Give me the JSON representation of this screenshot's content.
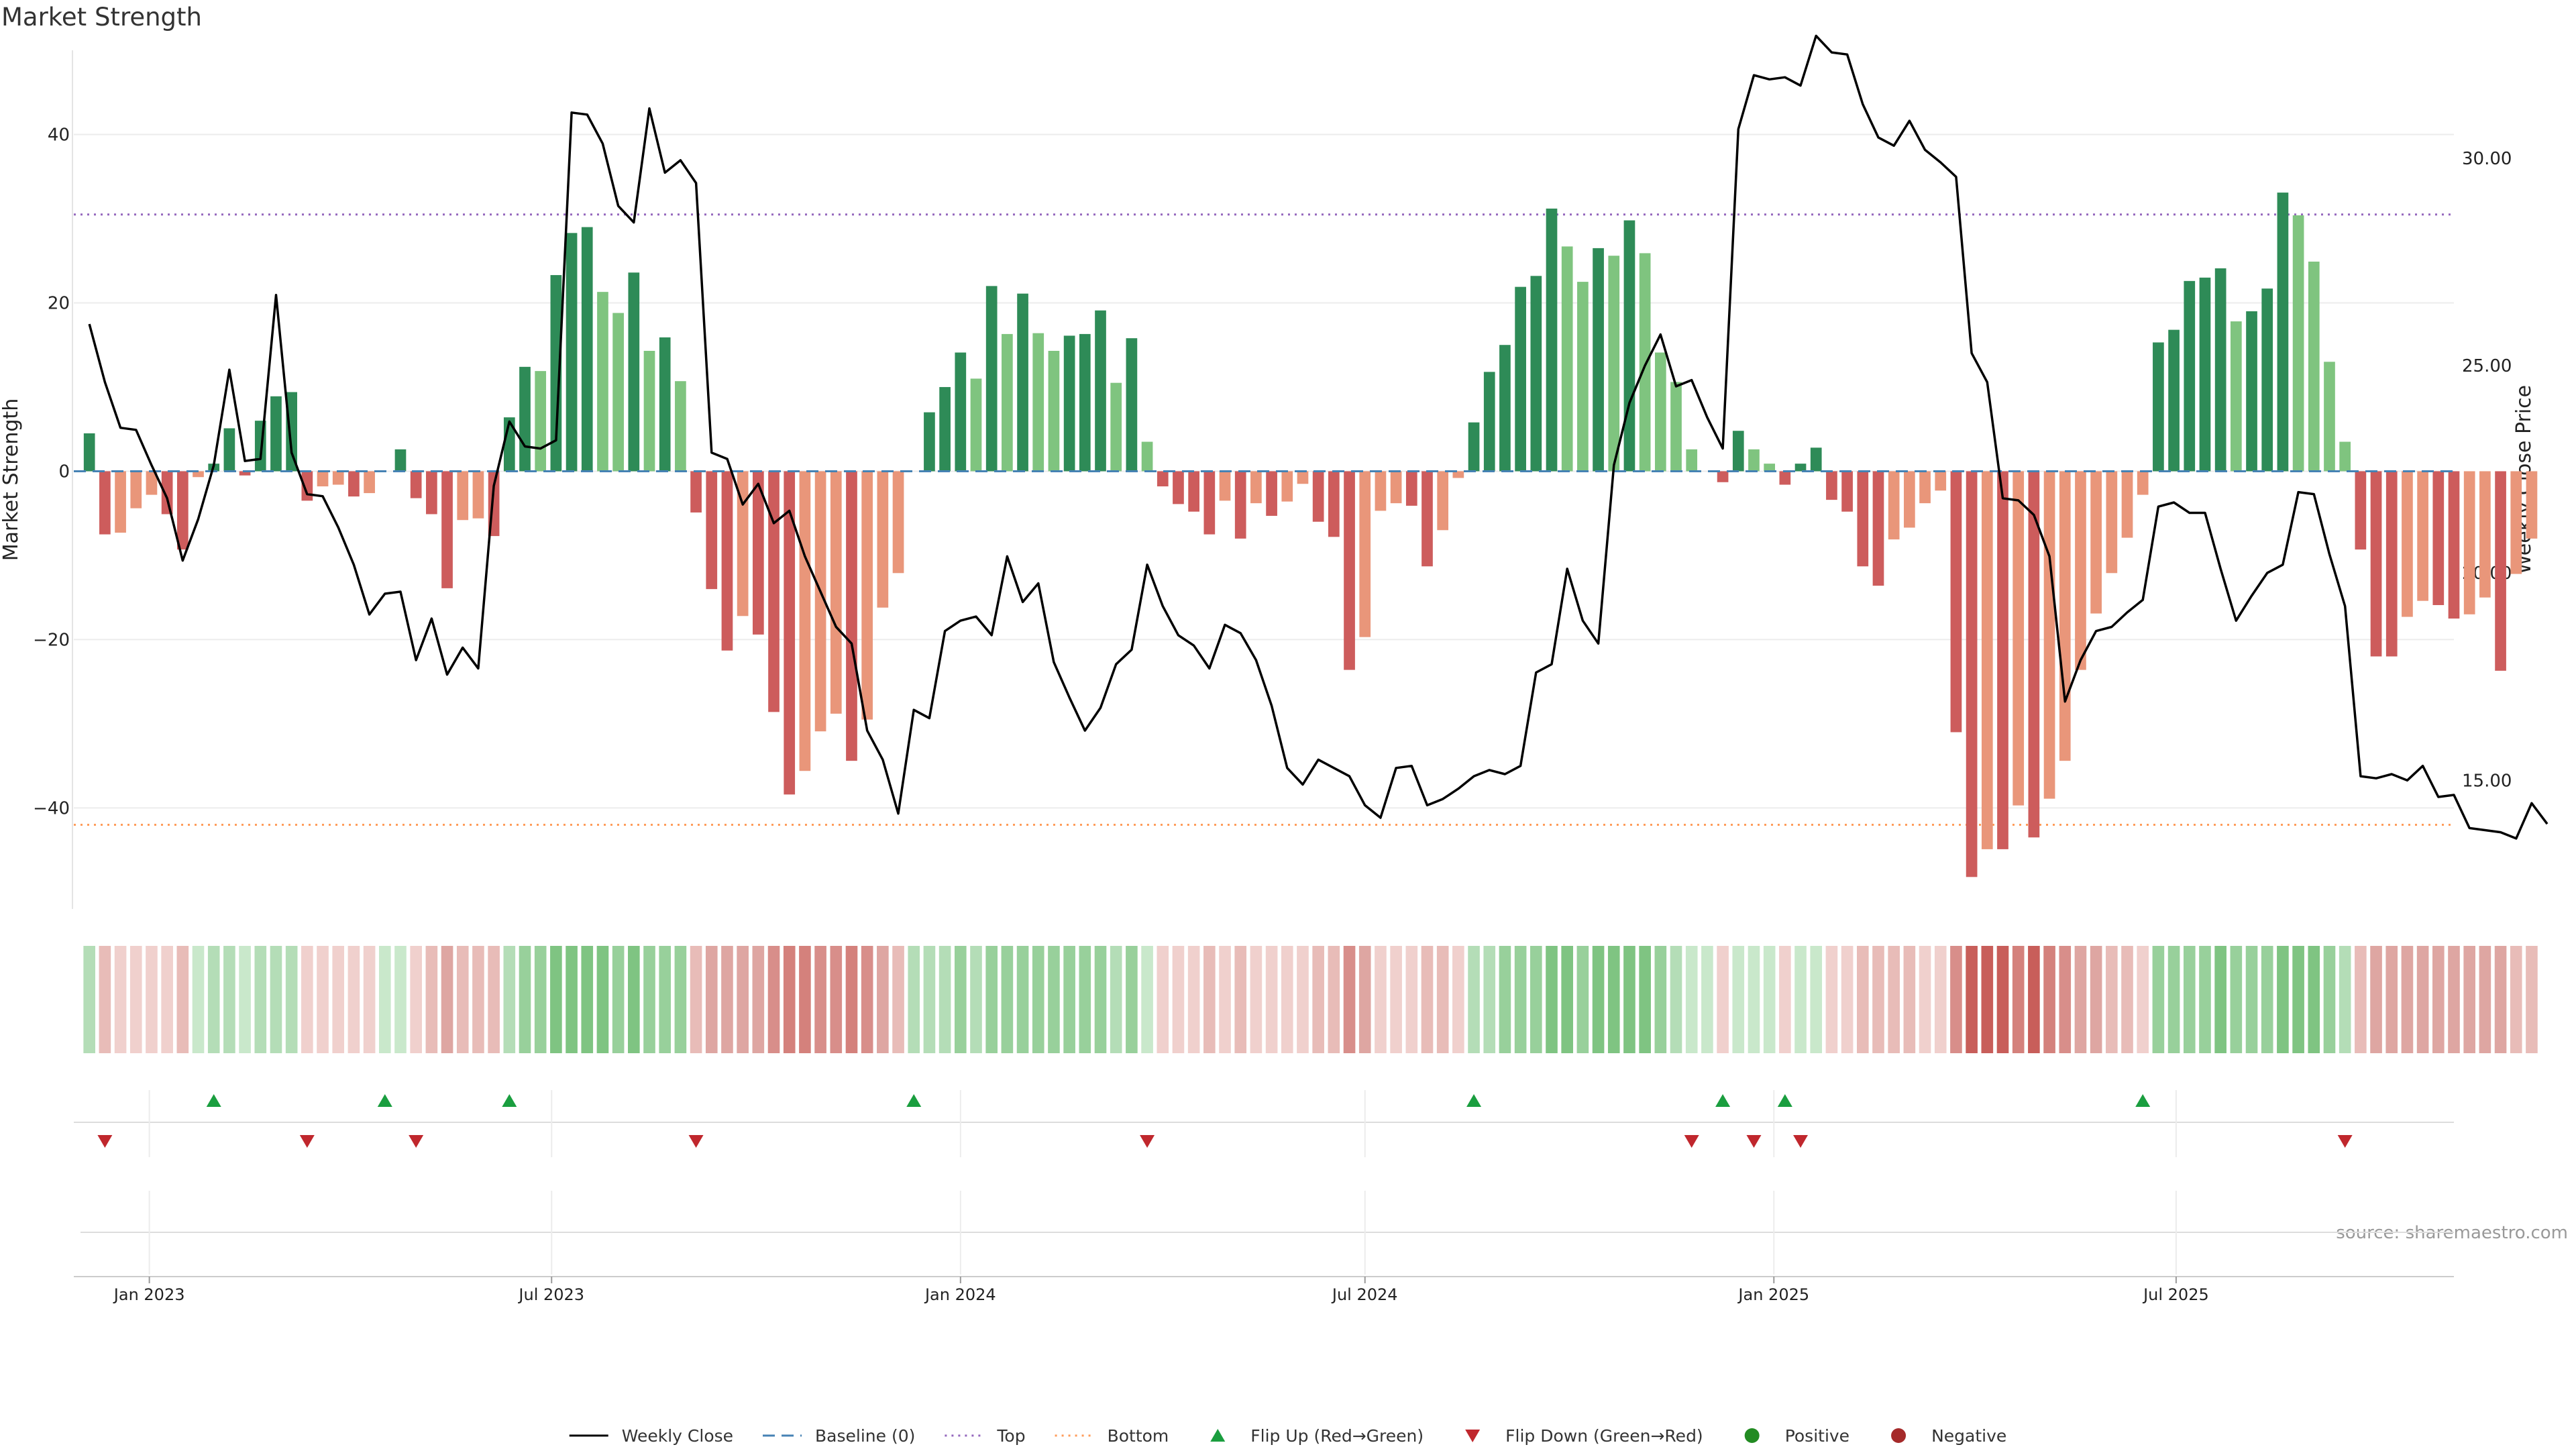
{
  "chart_data": {
    "type": "bar",
    "title": "Market Strength",
    "ylabel_left": "Market Strength",
    "ylabel_right": "Weekly Close Price",
    "source": "source: sharemaestro.com",
    "x_start": "2022-12-05",
    "x_step_days": 7,
    "x_range": [
      "2022-11-28",
      "2025-11-03"
    ],
    "ylim_left": [
      -52,
      50
    ],
    "ylim_right": [
      11.9,
      32.6
    ],
    "yticks_left": [
      -40,
      -20,
      0,
      20,
      40
    ],
    "yticks_right": [
      15,
      20,
      25,
      30
    ],
    "yticks_left_labels": [
      "−40",
      "−20",
      "0",
      "20",
      "40"
    ],
    "yticks_right_labels": [
      "15.00",
      "20.00",
      "25.00",
      "30.00"
    ],
    "xticks": [
      {
        "date": "2023-01-01",
        "label": "Jan 2023"
      },
      {
        "date": "2023-07-01",
        "label": "Jul 2023"
      },
      {
        "date": "2024-01-01",
        "label": "Jan 2024"
      },
      {
        "date": "2024-07-01",
        "label": "Jul 2024"
      },
      {
        "date": "2025-01-01",
        "label": "Jan 2025"
      },
      {
        "date": "2025-07-01",
        "label": "Jul 2025"
      }
    ],
    "top_line": 30.5,
    "bottom_line": -42,
    "grid": true,
    "strength": [
      4.5,
      -7.5,
      -7.3,
      -4.4,
      -2.8,
      -5.1,
      -9.3,
      -0.7,
      0.9,
      5.1,
      -0.5,
      6.0,
      8.9,
      9.4,
      -3.5,
      -1.8,
      -1.6,
      -3.0,
      -2.6,
      0.0,
      2.6,
      -3.2,
      -5.1,
      -13.9,
      -5.8,
      -5.6,
      -7.7,
      6.4,
      12.4,
      11.9,
      23.3,
      28.3,
      29.0,
      21.3,
      18.8,
      23.6,
      14.3,
      15.9,
      10.7,
      -4.9,
      -14.0,
      -21.3,
      -17.2,
      -19.4,
      -28.6,
      -38.4,
      -35.6,
      -30.9,
      -28.8,
      -34.4,
      -29.5,
      -16.2,
      -12.1,
      0.0,
      7.0,
      10.0,
      14.1,
      11.0,
      22.0,
      16.3,
      21.1,
      16.4,
      14.3,
      16.1,
      16.3,
      19.1,
      10.5,
      15.8,
      3.5,
      -1.8,
      -3.9,
      -4.8,
      -7.5,
      -3.5,
      -8.0,
      -3.8,
      -5.3,
      -3.6,
      -1.5,
      -6.0,
      -7.8,
      -23.6,
      -19.7,
      -4.7,
      -3.8,
      -4.1,
      -11.3,
      -7.0,
      -0.8,
      5.8,
      11.8,
      15.0,
      21.9,
      23.2,
      31.2,
      26.7,
      22.5,
      26.5,
      25.6,
      29.8,
      25.9,
      14.1,
      10.6,
      2.6,
      0.0,
      -1.3,
      4.8,
      2.6,
      0.9,
      -1.6,
      0.9,
      2.8,
      -3.4,
      -4.8,
      -11.3,
      -13.6,
      -8.1,
      -6.7,
      -3.8,
      -2.3,
      -31.0,
      -48.2,
      -44.9,
      -44.9,
      -39.7,
      -43.5,
      -38.9,
      -34.4,
      -23.6,
      -16.9,
      -12.1,
      -7.9,
      -2.8,
      15.3,
      16.8,
      22.6,
      23.0,
      24.1,
      17.8,
      19.0,
      21.7,
      33.1,
      30.4,
      24.9,
      13.0,
      3.5,
      -9.3,
      -22.0,
      -22.0,
      -17.3,
      -15.4,
      -15.9,
      -17.5,
      -17.0,
      -15.0,
      -23.7,
      -12.2,
      -8.0
    ],
    "close": [
      26.0,
      24.6,
      23.5,
      23.45,
      22.6,
      21.8,
      20.3,
      21.3,
      22.6,
      24.9,
      22.7,
      22.75,
      26.7,
      22.9,
      21.9,
      21.85,
      21.1,
      20.2,
      19.0,
      19.5,
      19.55,
      17.9,
      18.9,
      17.55,
      18.2,
      17.7,
      22.1,
      23.65,
      23.05,
      23.0,
      23.2,
      31.1,
      31.05,
      30.35,
      28.85,
      28.45,
      31.2,
      29.65,
      29.95,
      29.4,
      22.9,
      22.75,
      21.65,
      22.15,
      21.2,
      21.5,
      20.4,
      19.55,
      18.7,
      18.3,
      16.2,
      15.5,
      14.2,
      16.7,
      16.5,
      18.6,
      18.85,
      18.95,
      18.5,
      20.4,
      19.3,
      19.75,
      17.85,
      17.0,
      16.2,
      16.75,
      17.8,
      18.15,
      20.2,
      19.2,
      18.5,
      18.25,
      17.7,
      18.75,
      18.55,
      17.9,
      16.8,
      15.3,
      14.9,
      15.5,
      15.3,
      15.1,
      14.4,
      14.1,
      15.3,
      15.35,
      14.4,
      14.55,
      14.8,
      15.1,
      15.25,
      15.15,
      15.35,
      17.6,
      17.8,
      20.1,
      18.85,
      18.3,
      22.6,
      24.1,
      25.0,
      25.75,
      24.5,
      24.65,
      23.75,
      23.0,
      30.7,
      32.0,
      31.9,
      31.95,
      31.75,
      32.95,
      32.55,
      32.5,
      31.3,
      30.5,
      30.3,
      30.9,
      30.2,
      29.9,
      29.55,
      25.3,
      24.6,
      21.8,
      21.75,
      21.4,
      20.4,
      16.9,
      17.9,
      18.6,
      18.7,
      19.05,
      19.35,
      21.6,
      21.7,
      21.45,
      21.45,
      20.1,
      18.85,
      19.45,
      20.0,
      20.2,
      21.95,
      21.9,
      20.45,
      19.2,
      15.1,
      15.05,
      15.15,
      15.0,
      15.35,
      14.6,
      14.65,
      13.85,
      13.8,
      13.75,
      13.6,
      14.45,
      13.95
    ],
    "heat_strip": [
      2,
      -2,
      -1,
      -1,
      -1,
      -1,
      -2,
      1,
      2,
      2,
      1,
      2,
      2,
      2,
      -1,
      -1,
      -1,
      -1,
      -1,
      1,
      1,
      -1,
      -2,
      -3,
      -2,
      -2,
      -2,
      2,
      3,
      3,
      4,
      4,
      4,
      4,
      3,
      4,
      3,
      3,
      3,
      -2,
      -3,
      -3,
      -3,
      -3,
      -4,
      -5,
      -5,
      -4,
      -4,
      -5,
      -4,
      -3,
      -2,
      2,
      2,
      2,
      3,
      2,
      3,
      3,
      3,
      3,
      3,
      3,
      3,
      3,
      2,
      3,
      1,
      -1,
      -1,
      -1,
      -2,
      -1,
      -2,
      -1,
      -1,
      -1,
      -1,
      -2,
      -2,
      -4,
      -3,
      -1,
      -1,
      -1,
      -2,
      -2,
      -1,
      2,
      2,
      3,
      3,
      3,
      4,
      4,
      3,
      4,
      4,
      4,
      4,
      3,
      2,
      1,
      1,
      -1,
      1,
      1,
      1,
      -1,
      1,
      1,
      -1,
      -1,
      -2,
      -2,
      -2,
      -2,
      -1,
      -1,
      -4,
      -6,
      -6,
      -6,
      -5,
      -6,
      -5,
      -4,
      -3,
      -3,
      -2,
      -2,
      -1,
      3,
      3,
      3,
      3,
      4,
      3,
      3,
      3,
      4,
      4,
      4,
      3,
      2,
      -2,
      -3,
      -3,
      -3,
      -3,
      -3,
      -3,
      -3,
      -3,
      -3,
      -2,
      -2
    ],
    "flip_up_indices": [
      8,
      19,
      27,
      53,
      89,
      105,
      109,
      132
    ],
    "flip_down_indices": [
      1,
      14,
      21,
      39,
      68,
      103,
      107,
      110,
      145
    ],
    "colors": {
      "positive_rising": "#2e8b57",
      "positive_falling": "#7fc47f",
      "negative_falling": "#cd5c5c",
      "negative_rising": "#e9967a",
      "close_line": "#000000",
      "baseline": "#4682b4",
      "top_line": "#9467bd",
      "bottom_line": "#ff9c5a",
      "flip_up": "#1a9e3f",
      "flip_down": "#c0272d",
      "positive_dot": "#228b22",
      "negative_dot": "#a52a2a"
    },
    "legend": [
      {
        "label": "Weekly Close",
        "symbol": "line"
      },
      {
        "label": "Baseline (0)",
        "symbol": "dash"
      },
      {
        "label": "Top",
        "symbol": "dotted-purple"
      },
      {
        "label": "Bottom",
        "symbol": "dotted-orange"
      },
      {
        "label": "Flip Up (Red→Green)",
        "symbol": "triangle-up"
      },
      {
        "label": "Flip Down (Green→Red)",
        "symbol": "triangle-down"
      },
      {
        "label": "Positive",
        "symbol": "dot-positive"
      },
      {
        "label": "Negative",
        "symbol": "dot-negative"
      }
    ],
    "legend_placement": "bottom-center"
  }
}
